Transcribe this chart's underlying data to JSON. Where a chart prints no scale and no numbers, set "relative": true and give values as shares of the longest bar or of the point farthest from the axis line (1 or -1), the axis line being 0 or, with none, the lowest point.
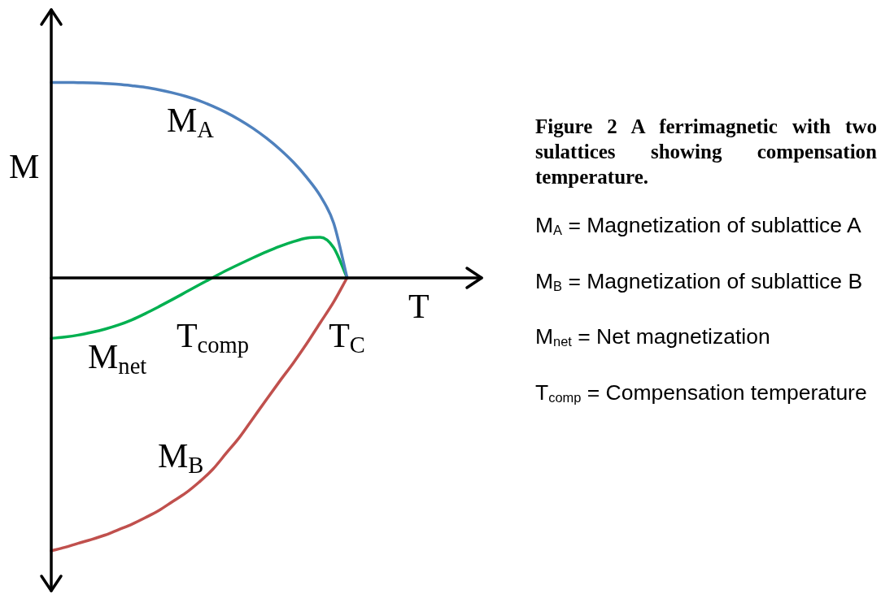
{
  "chart_data": {
    "type": "line",
    "title": "Figure 2 A ferrimagnetic with two sulattices showing compensation temperature.",
    "xlabel": "T",
    "ylabel": "M",
    "relative": true,
    "categories": [
      null,
      null,
      null,
      null,
      null,
      null,
      null,
      null,
      null,
      null,
      null,
      null,
      "T$_{comp}$",
      null,
      null,
      null,
      null,
      null,
      null,
      null,
      null,
      null,
      "T$_{C}$",
      null,
      null,
      null,
      null,
      null,
      null,
      null,
      null,
      null,
      null
    ],
    "series": [
      {
        "name": "M$_{A}$",
        "color": "#4f81bd",
        "values": [
          0.715,
          0.715,
          0.714,
          0.713,
          0.711,
          0.708,
          0.703,
          0.697,
          0.688,
          0.677,
          0.664,
          0.648,
          0.628,
          0.605,
          0.578,
          0.547,
          0.511,
          0.47,
          0.423,
          0.367,
          0.3,
          0.2,
          0,
          null,
          null,
          null,
          null,
          null,
          null,
          null,
          null,
          null,
          null
        ]
      },
      {
        "name": "M$_{B}$",
        "color": "#c0504d",
        "values": [
          -1,
          -0.987,
          -0.972,
          -0.958,
          -0.942,
          -0.922,
          -0.902,
          -0.878,
          -0.852,
          -0.82,
          -0.788,
          -0.748,
          -0.702,
          -0.643,
          -0.584,
          -0.515,
          -0.446,
          -0.378,
          -0.312,
          -0.241,
          -0.165,
          -0.089,
          0,
          null,
          null,
          null,
          null,
          null,
          null,
          null,
          null,
          null,
          null
        ]
      },
      {
        "name": "M$_{net}$",
        "color": "#00b050",
        "values": [
          -0.222,
          -0.217,
          -0.21,
          -0.2,
          -0.188,
          -0.173,
          -0.154,
          -0.131,
          -0.106,
          -0.08,
          -0.053,
          -0.026,
          0,
          0.026,
          0.05,
          0.073,
          0.095,
          0.115,
          0.132,
          0.145,
          0.148,
          0.11,
          0,
          null,
          null,
          null,
          null,
          null,
          null,
          null,
          null,
          null,
          null
        ]
      }
    ],
    "annotations": [
      "M$_{A}$ = Magnetization of sublattice A",
      "M$_{B}$ = Magnetization of sublattice B",
      "M$_{net}$ = Net magnetization",
      "T$_{comp}$ = Compensation temperature"
    ]
  }
}
